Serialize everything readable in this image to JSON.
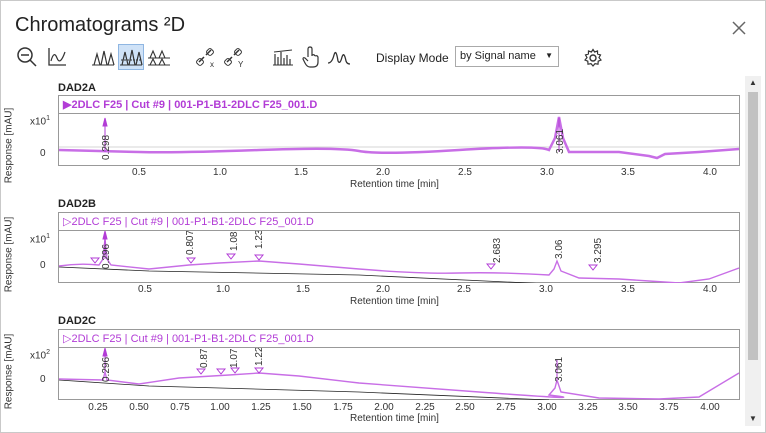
{
  "window": {
    "title": "Chromatograms ²D"
  },
  "toolbar": {
    "display_mode_label": "Display Mode",
    "display_mode_value": "by Signal name",
    "colors": {
      "signal": "#b23cd6",
      "active_button": "#cfe2f7"
    }
  },
  "panels": [
    {
      "title": "DAD2A",
      "legend": "▶2DLC F25 | Cut #9 | 001-P1-B1-2DLC F25_001.D",
      "y_label": "Response [mAU]",
      "y_exp": "x10",
      "y_exp_power": "1",
      "y_zero": "0",
      "x_label": "Retention time [min]",
      "x_ticks": [
        "0.5",
        "1.0",
        "1.5",
        "2.0",
        "2.5",
        "3.0",
        "3.5",
        "4.0"
      ],
      "peaks": [
        "0.298",
        "3.061"
      ]
    },
    {
      "title": "DAD2B",
      "legend": "▷2DLC F25 | Cut #9 | 001-P1-B1-2DLC F25_001.D",
      "y_label": "Response [mAU]",
      "y_exp": "x10",
      "y_exp_power": "1",
      "y_zero": "0",
      "x_label": "Retention time [min]",
      "x_ticks": [
        "0.5",
        "1.0",
        "1.5",
        "2.0",
        "2.5",
        "3.0",
        "3.5",
        "4.0"
      ],
      "peaks": [
        "0.296",
        "0.807",
        "1.083",
        "1.23",
        "2.683",
        "3.06",
        "3.295"
      ]
    },
    {
      "title": "DAD2C",
      "legend": "▷2DLC F25 | Cut #9 | 001-P1-B1-2DLC F25_001.D",
      "y_label": "Response [mAU]",
      "y_exp": "x10",
      "y_exp_power": "2",
      "y_zero": "0",
      "x_label": "Retention time [min]",
      "x_ticks": [
        "0.25",
        "0.50",
        "0.75",
        "1.00",
        "1.25",
        "1.50",
        "1.75",
        "2.00",
        "2.25",
        "2.50",
        "2.75",
        "3.00",
        "3.25",
        "3.50",
        "3.75",
        "4.00"
      ],
      "peaks": [
        "0.296",
        "0.87",
        "1.07",
        "1.22",
        "3.061"
      ]
    }
  ]
}
